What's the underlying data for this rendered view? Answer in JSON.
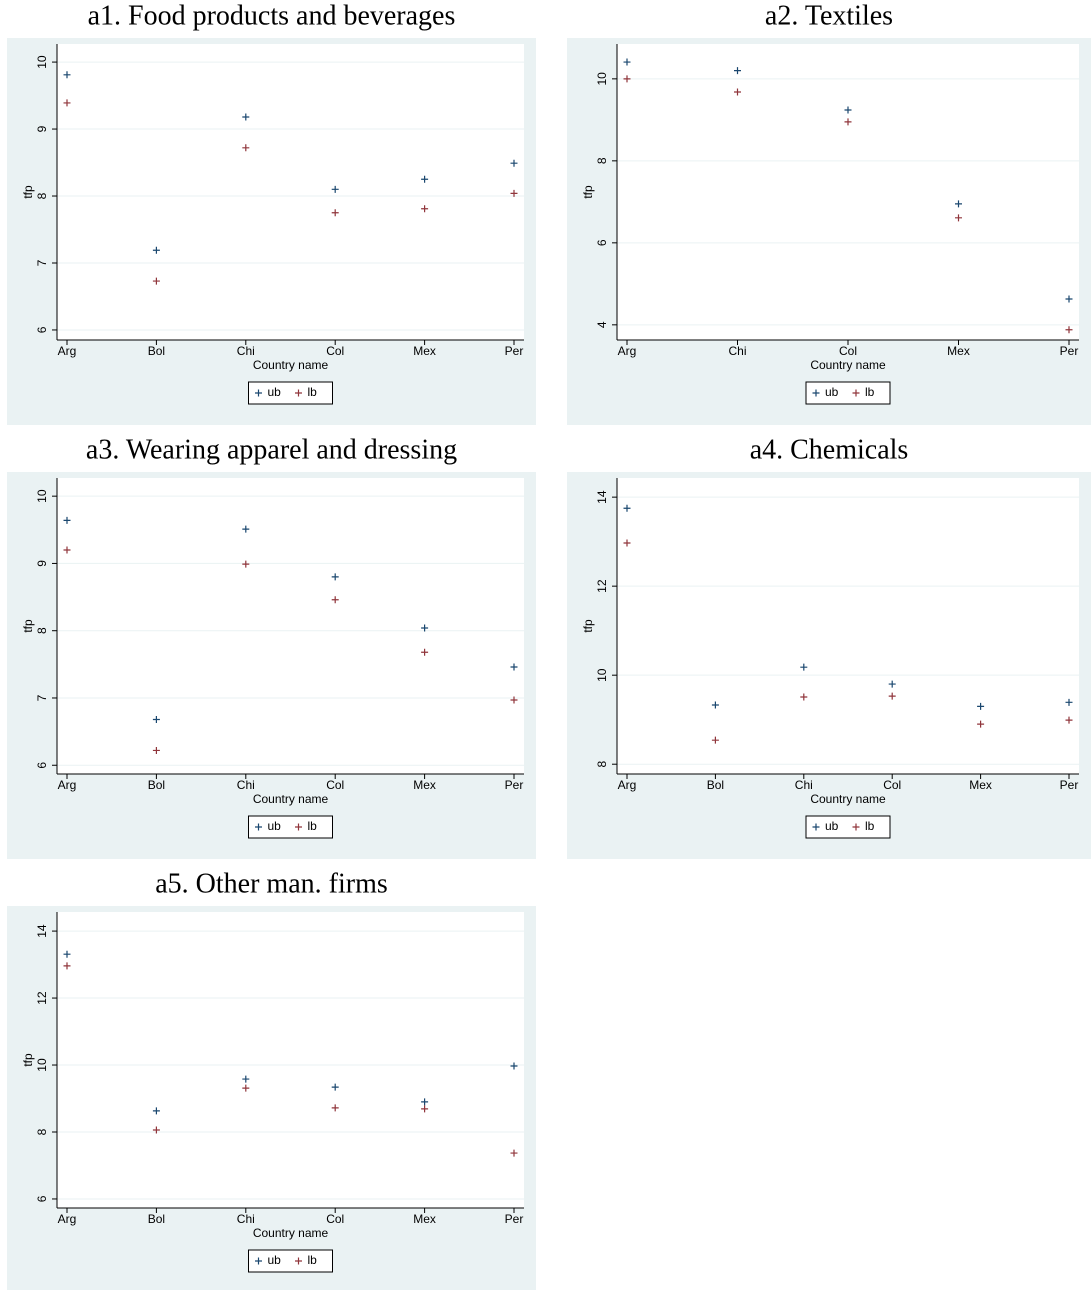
{
  "chart_data": [
    {
      "type": "scatter",
      "title": "a1. Food products and beverages",
      "xlabel": "Country name",
      "ylabel": "tfp",
      "categories": [
        "Arg",
        "Bol",
        "Chi",
        "Col",
        "Mex",
        "Per"
      ],
      "series": [
        {
          "name": "ub",
          "color": "#1a476f",
          "values": [
            9.81,
            7.19,
            9.18,
            8.1,
            8.25,
            8.49
          ]
        },
        {
          "name": "lb",
          "color": "#90353b",
          "values": [
            9.39,
            6.73,
            8.72,
            7.75,
            7.81,
            8.04
          ]
        }
      ],
      "ylim": [
        5.85,
        10.27
      ],
      "yticks": [
        6,
        7,
        8,
        9,
        10
      ],
      "grid": true,
      "legend": "bottom"
    },
    {
      "type": "scatter",
      "title": "a2. Textiles",
      "xlabel": "Country name",
      "ylabel": "tfp",
      "categories": [
        "Arg",
        "Chi",
        "Col",
        "Mex",
        "Per"
      ],
      "series": [
        {
          "name": "ub",
          "color": "#1a476f",
          "values": [
            10.41,
            10.2,
            9.24,
            6.95,
            4.63
          ]
        },
        {
          "name": "lb",
          "color": "#90353b",
          "values": [
            10.0,
            9.68,
            8.95,
            6.61,
            3.88
          ]
        }
      ],
      "ylim": [
        3.63,
        10.85
      ],
      "yticks": [
        4,
        6,
        8,
        10
      ],
      "grid": true,
      "legend": "bottom"
    },
    {
      "type": "scatter",
      "title": "a3. Wearing apparel and dressing",
      "xlabel": "Country name",
      "ylabel": "tfp",
      "categories": [
        "Arg",
        "Bol",
        "Chi",
        "Col",
        "Mex",
        "Per"
      ],
      "series": [
        {
          "name": "ub",
          "color": "#1a476f",
          "values": [
            9.64,
            6.68,
            9.51,
            8.8,
            8.04,
            7.46
          ]
        },
        {
          "name": "lb",
          "color": "#90353b",
          "values": [
            9.2,
            6.22,
            8.99,
            8.46,
            7.68,
            6.97
          ]
        }
      ],
      "ylim": [
        5.87,
        10.27
      ],
      "yticks": [
        6,
        7,
        8,
        9,
        10
      ],
      "grid": true,
      "legend": "bottom"
    },
    {
      "type": "scatter",
      "title": "a4. Chemicals",
      "xlabel": "Country name",
      "ylabel": "tfp",
      "categories": [
        "Arg",
        "Bol",
        "Chi",
        "Col",
        "Mex",
        "Per"
      ],
      "series": [
        {
          "name": "ub",
          "color": "#1a476f",
          "values": [
            13.75,
            9.33,
            10.18,
            9.8,
            9.3,
            9.39
          ]
        },
        {
          "name": "lb",
          "color": "#90353b",
          "values": [
            12.97,
            8.54,
            9.51,
            9.53,
            8.9,
            8.99
          ]
        }
      ],
      "ylim": [
        7.78,
        14.43
      ],
      "yticks": [
        8,
        10,
        12,
        14
      ],
      "grid": true,
      "legend": "bottom"
    },
    {
      "type": "scatter",
      "title": "a5. Other man. firms",
      "xlabel": "Country name",
      "ylabel": "tfp",
      "categories": [
        "Arg",
        "Bol",
        "Chi",
        "Col",
        "Mex",
        "Per"
      ],
      "series": [
        {
          "name": "ub",
          "color": "#1a476f",
          "values": [
            13.31,
            8.63,
            9.58,
            9.34,
            8.9,
            9.97
          ]
        },
        {
          "name": "lb",
          "color": "#90353b",
          "values": [
            12.96,
            8.06,
            9.31,
            8.72,
            8.69,
            7.37
          ]
        }
      ],
      "ylim": [
        5.73,
        14.57
      ],
      "yticks": [
        6,
        8,
        10,
        12,
        14
      ],
      "grid": true,
      "legend": "bottom"
    }
  ]
}
